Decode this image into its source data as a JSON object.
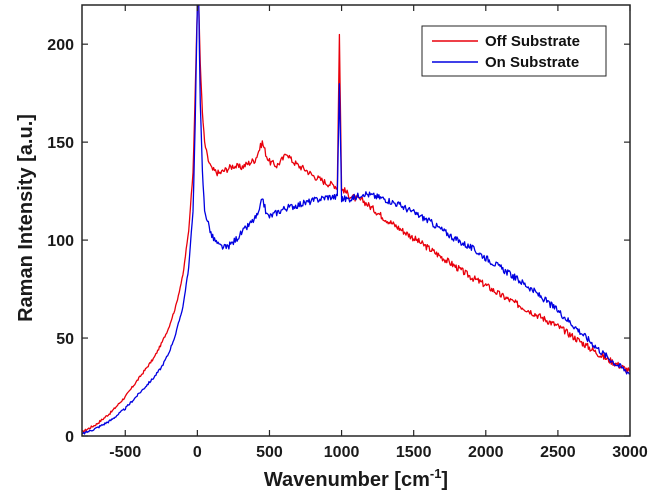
{
  "chart_data": {
    "type": "line",
    "xlabel_main": "Wavenumber [cm",
    "xlabel_sup": "-1",
    "xlabel_end": "]",
    "ylabel": "Raman Intensity [a.u.]",
    "xlim": [
      -800,
      3000
    ],
    "ylim": [
      0,
      220
    ],
    "xticks": [
      -500,
      0,
      500,
      1000,
      1500,
      2000,
      2500,
      3000
    ],
    "yticks": [
      0,
      50,
      100,
      150,
      200
    ],
    "xtick_labels": [
      "-500",
      "0",
      "500",
      "1000",
      "1500",
      "2000",
      "2500",
      "3000"
    ],
    "ytick_labels": [
      "0",
      "50",
      "100",
      "150",
      "200"
    ],
    "grid": false,
    "legend_position": "top-right",
    "series": [
      {
        "name": "Off Substrate",
        "color": "#e8000b",
        "x": [
          -800,
          -700,
          -600,
          -500,
          -400,
          -300,
          -250,
          -200,
          -150,
          -100,
          -60,
          -30,
          -15,
          0,
          10,
          20,
          35,
          50,
          70,
          100,
          150,
          200,
          250,
          300,
          350,
          400,
          450,
          480,
          500,
          550,
          600,
          620,
          650,
          700,
          750,
          800,
          850,
          900,
          950,
          970,
          985,
          1000,
          1010,
          1050,
          1100,
          1150,
          1200,
          1300,
          1400,
          1500,
          1600,
          1700,
          1800,
          1900,
          2000,
          2100,
          2200,
          2300,
          2400,
          2500,
          2600,
          2700,
          2800,
          2900,
          3000
        ],
        "y": [
          2,
          6,
          12,
          20,
          30,
          40,
          47,
          55,
          66,
          82,
          105,
          135,
          175,
          220,
          220,
          190,
          165,
          150,
          142,
          136,
          134,
          136,
          138,
          137,
          139,
          141,
          150,
          143,
          140,
          138,
          142,
          145,
          141,
          138,
          136,
          133,
          131,
          129,
          128,
          127,
          205,
          125,
          126,
          123,
          121,
          120,
          117,
          111,
          106,
          101,
          96,
          91,
          86,
          81,
          77,
          72,
          68,
          64,
          60,
          56,
          51,
          46,
          41,
          37,
          33
        ]
      },
      {
        "name": "On Substrate",
        "color": "#0000e0",
        "x": [
          -800,
          -700,
          -600,
          -500,
          -400,
          -300,
          -250,
          -200,
          -150,
          -100,
          -60,
          -30,
          -15,
          0,
          10,
          20,
          35,
          50,
          70,
          100,
          150,
          200,
          250,
          300,
          350,
          400,
          430,
          450,
          480,
          500,
          550,
          600,
          650,
          700,
          750,
          800,
          850,
          900,
          950,
          970,
          985,
          1000,
          1010,
          1050,
          1100,
          1150,
          1200,
          1300,
          1400,
          1500,
          1600,
          1700,
          1800,
          1900,
          2000,
          2100,
          2200,
          2300,
          2400,
          2500,
          2600,
          2700,
          2800,
          2900,
          3000
        ],
        "y": [
          1,
          4,
          8,
          14,
          22,
          30,
          35,
          42,
          52,
          66,
          86,
          115,
          160,
          220,
          220,
          170,
          135,
          115,
          110,
          102,
          97,
          96,
          99,
          103,
          107,
          111,
          114,
          122,
          113,
          112,
          114,
          116,
          117,
          118,
          119,
          120,
          121,
          122,
          122,
          122,
          180,
          121,
          121,
          121,
          122,
          124,
          123,
          121,
          118,
          114,
          110,
          105,
          100,
          96,
          91,
          86,
          81,
          76,
          70,
          64,
          57,
          50,
          43,
          37,
          32
        ]
      }
    ]
  }
}
